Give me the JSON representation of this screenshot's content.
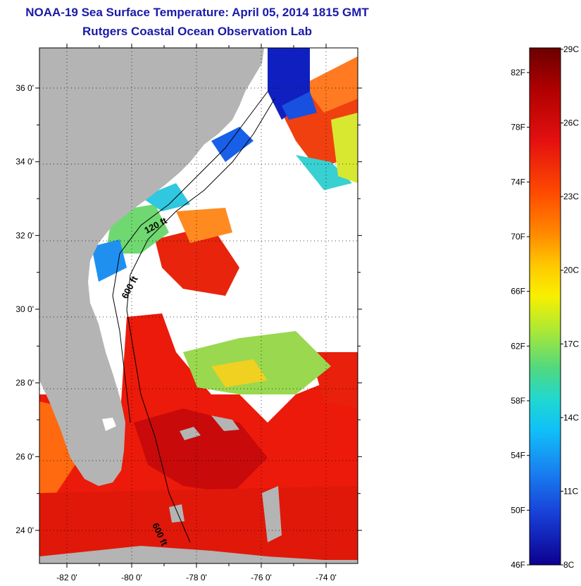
{
  "header": {
    "title": "NOAA-19 Sea Surface Temperature:  April 05, 2014 1815 GMT",
    "subtitle": "Rutgers Coastal Ocean Observation Lab"
  },
  "map": {
    "lat_ticks": [
      {
        "value": 36,
        "label": "36 0'"
      },
      {
        "value": 34,
        "label": "34 0'"
      },
      {
        "value": 32,
        "label": "32 0'"
      },
      {
        "value": 30,
        "label": "30 0'"
      },
      {
        "value": 28,
        "label": "28 0'"
      },
      {
        "value": 26,
        "label": "26 0'"
      },
      {
        "value": 24,
        "label": "24 0'"
      }
    ],
    "lon_ticks": [
      {
        "value": -82,
        "label": "-82 0'"
      },
      {
        "value": -80,
        "label": "-80 0'"
      },
      {
        "value": -78,
        "label": "-78 0'"
      },
      {
        "value": -76,
        "label": "-76 0'"
      },
      {
        "value": -74,
        "label": "-74 0'"
      }
    ],
    "contour_labels": {
      "shelf_120": "120 ft",
      "slope_600_north": "600 ft",
      "slope_600_south": "600 ft"
    },
    "land_color": "#b4b4b4",
    "cloud_color": "#ffffff"
  },
  "colorbar": {
    "fahrenheit_labels": [
      "82F",
      "78F",
      "74F",
      "70F",
      "66F",
      "62F",
      "58F",
      "54F",
      "50F",
      "46F"
    ],
    "celsius_labels": [
      "29C",
      "26C",
      "23C",
      "20C",
      "17C",
      "14C",
      "11C",
      "8C"
    ],
    "colors_top_to_bottom": [
      "#7a0000",
      "#b00000",
      "#e01010",
      "#ff3a00",
      "#ff7a00",
      "#ffb400",
      "#ffe600",
      "#d8f020",
      "#80e050",
      "#30d8b0",
      "#10c8f0",
      "#1890f0",
      "#1858e0",
      "#1020c8",
      "#100090"
    ]
  }
}
